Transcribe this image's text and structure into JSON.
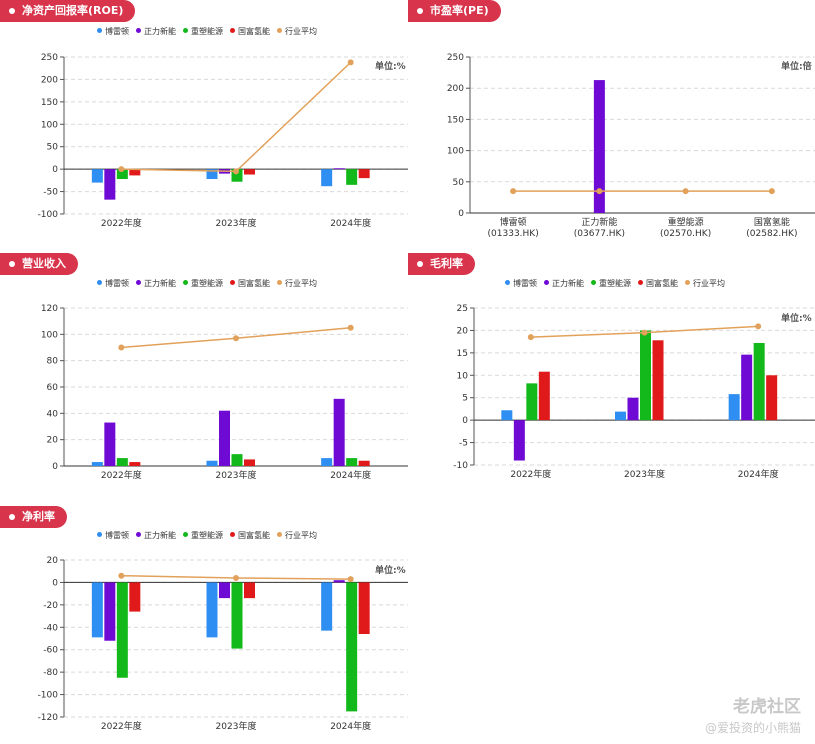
{
  "legend": [
    {
      "name": "博雷顿",
      "color": "#2f8ef2"
    },
    {
      "name": "正力新能",
      "color": "#6e0ad4"
    },
    {
      "name": "重塑能源",
      "color": "#13b81a"
    },
    {
      "name": "国富氢能",
      "color": "#e01a1a"
    },
    {
      "name": "行业平均",
      "color": "#e2a15a"
    }
  ],
  "watermark": {
    "line1": "老虎社区",
    "line2": "@爱投资的小熊猫"
  },
  "chart_data": [
    {
      "id": "roe",
      "type": "bar",
      "title": "净资产回报率(ROE)",
      "unit": "单位:%",
      "categories": [
        "2022年度",
        "2023年度",
        "2024年度"
      ],
      "ylim": [
        -100,
        250
      ],
      "yticks": [
        -100,
        -50,
        0,
        50,
        100,
        150,
        200,
        250
      ],
      "series": [
        {
          "name": "博雷顿",
          "values": [
            -30,
            -22,
            -38
          ]
        },
        {
          "name": "正力新能",
          "values": [
            -68,
            -10,
            2
          ]
        },
        {
          "name": "重塑能源",
          "values": [
            -22,
            -28,
            -35
          ]
        },
        {
          "name": "国富氢能",
          "values": [
            -14,
            -12,
            -20
          ]
        }
      ],
      "line": {
        "name": "行业平均",
        "values": [
          0,
          -5,
          238
        ]
      }
    },
    {
      "id": "pe",
      "type": "bar",
      "title": "市盈率(PE)",
      "unit": "单位:倍",
      "categories": [
        "博雷顿\n(01333.HK)",
        "正力新能\n(03677.HK)",
        "重塑能源\n(02570.HK)",
        "国富氢能\n(02582.HK)"
      ],
      "ylim": [
        0,
        250
      ],
      "yticks": [
        0,
        50,
        100,
        150,
        200,
        250
      ],
      "series": [
        {
          "name": "市盈率",
          "values": [
            null,
            213,
            null,
            null
          ]
        }
      ],
      "line": {
        "name": "行业平均",
        "values": [
          35,
          35,
          35,
          35
        ]
      }
    },
    {
      "id": "revenue",
      "type": "bar",
      "title": "营业收入",
      "unit": "",
      "categories": [
        "2022年度",
        "2023年度",
        "2024年度"
      ],
      "ylim": [
        0,
        120
      ],
      "yticks": [
        0,
        20,
        40,
        60,
        80,
        100,
        120
      ],
      "series": [
        {
          "name": "博雷顿",
          "values": [
            3,
            4,
            6
          ]
        },
        {
          "name": "正力新能",
          "values": [
            33,
            42,
            51
          ]
        },
        {
          "name": "重塑能源",
          "values": [
            6,
            9,
            6
          ]
        },
        {
          "name": "国富氢能",
          "values": [
            3,
            5,
            4
          ]
        }
      ],
      "line": {
        "name": "行业平均",
        "values": [
          90,
          97,
          105
        ]
      }
    },
    {
      "id": "gross",
      "type": "bar",
      "title": "毛利率",
      "unit": "单位:%",
      "categories": [
        "2022年度",
        "2023年度",
        "2024年度"
      ],
      "ylim": [
        -10,
        25
      ],
      "yticks": [
        -10,
        -5,
        0,
        5,
        10,
        15,
        20,
        25
      ],
      "series": [
        {
          "name": "博雷顿",
          "values": [
            2.2,
            1.9,
            5.8
          ]
        },
        {
          "name": "正力新能",
          "values": [
            -9,
            5,
            14.6
          ]
        },
        {
          "name": "重塑能源",
          "values": [
            8.2,
            20,
            17.2
          ]
        },
        {
          "name": "国富氢能",
          "values": [
            10.8,
            17.8,
            10
          ]
        }
      ],
      "line": {
        "name": "行业平均",
        "values": [
          18.5,
          19.5,
          20.9
        ]
      }
    },
    {
      "id": "net",
      "type": "bar",
      "title": "净利率",
      "unit": "单位:%",
      "categories": [
        "2022年度",
        "2023年度",
        "2024年度"
      ],
      "ylim": [
        -120,
        20
      ],
      "yticks": [
        -120,
        -100,
        -80,
        -60,
        -40,
        -20,
        0,
        20
      ],
      "series": [
        {
          "name": "博雷顿",
          "values": [
            -49,
            -49,
            -43
          ]
        },
        {
          "name": "正力新能",
          "values": [
            -52,
            -14,
            2
          ]
        },
        {
          "name": "重塑能源",
          "values": [
            -85,
            -59,
            -115
          ]
        },
        {
          "name": "国富氢能",
          "values": [
            -26,
            -14,
            -46
          ]
        }
      ],
      "line": {
        "name": "行业平均",
        "values": [
          6,
          4,
          3
        ]
      }
    }
  ]
}
